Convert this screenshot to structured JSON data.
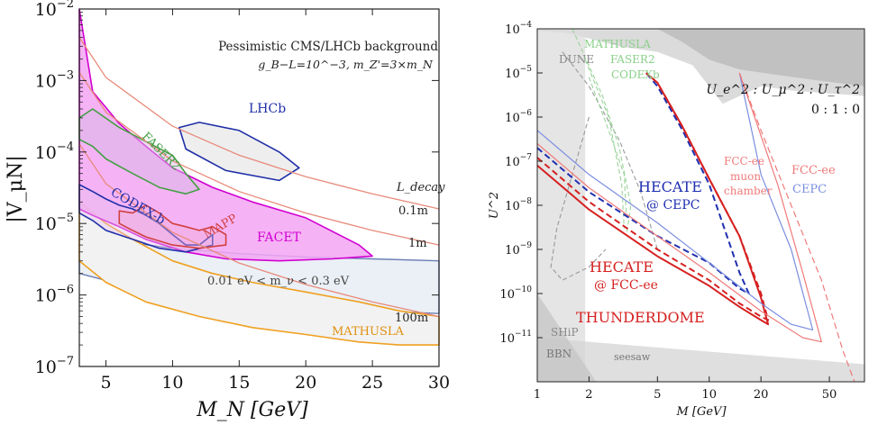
{
  "chart_data": [
    {
      "type": "area",
      "xlabel": "M_N [GeV]",
      "ylabel": "|V_μN|",
      "xlim": [
        3,
        30
      ],
      "ylim": [
        1e-07,
        0.01
      ],
      "xscale": "linear",
      "yscale": "log",
      "xticks": [
        "5",
        "10",
        "15",
        "20",
        "25",
        "30"
      ],
      "yticks": [
        "10^-7",
        "10^-6",
        "10^-5",
        "10^-4",
        "10^-3",
        "10^-2"
      ],
      "annotation_title": "Pessimistic CMS/LHCb background",
      "annotation_params": "g_B−L=10^−3, m_Z'=3×m_N",
      "ldecay_title": "L_decay",
      "series": [
        {
          "name": "LHCb",
          "color": "#1f2fa8",
          "x": [
            10.5,
            12,
            15,
            18,
            19.5,
            18,
            14,
            11,
            10.5
          ],
          "y": [
            0.00022,
            0.00026,
            0.0002,
            0.0001,
            6e-05,
            4e-05,
            5.5e-05,
            0.00011,
            0.00022
          ]
        },
        {
          "name": "FACET",
          "color": "#d200d2",
          "x": [
            3,
            4,
            6,
            8,
            10,
            13,
            16,
            20,
            24,
            25,
            22,
            18,
            14,
            11,
            8,
            6,
            4,
            3
          ],
          "y": [
            0.01,
            0.0007,
            0.00025,
            0.00012,
            6e-05,
            3.2e-05,
            2e-05,
            1.2e-05,
            5e-06,
            3.5e-06,
            3.2e-06,
            3e-06,
            3.2e-06,
            4e-06,
            6e-06,
            9e-06,
            1.3e-05,
            1.6e-05
          ]
        },
        {
          "name": "FASER2",
          "color": "#45a045",
          "x": [
            3,
            4,
            6,
            8,
            10,
            11,
            12,
            11,
            9,
            7,
            5,
            4,
            3
          ],
          "y": [
            0.0003,
            0.0004,
            0.00022,
            0.00014,
            9e-05,
            5e-05,
            3e-05,
            2.6e-05,
            3.2e-05,
            5e-05,
            8e-05,
            0.00012,
            0.00015
          ]
        },
        {
          "name": "CODEX-b",
          "color": "#1f2fa8",
          "x": [
            3,
            4,
            5,
            6,
            7,
            8,
            9,
            10,
            11,
            12,
            13,
            13,
            11,
            9,
            7,
            5,
            4,
            3
          ],
          "y": [
            3.5e-05,
            2.8e-05,
            2.2e-05,
            1.8e-05,
            1.6e-05,
            1.3e-05,
            1e-05,
            7e-06,
            5e-06,
            5e-06,
            7e-06,
            5e-06,
            4e-06,
            4.5e-06,
            6e-06,
            8e-06,
            1.1e-05,
            1.4e-05
          ]
        },
        {
          "name": "MAPP",
          "color": "#d24040",
          "x": [
            6,
            7,
            8,
            9,
            10,
            11,
            12,
            13,
            14,
            14,
            12,
            10,
            8,
            7,
            6
          ],
          "y": [
            1.5e-05,
            1.4e-05,
            1.8e-05,
            1.4e-05,
            1e-05,
            9e-06,
            8e-06,
            9e-06,
            7e-06,
            5e-06,
            4.5e-06,
            5e-06,
            6.5e-06,
            8e-06,
            1e-05
          ]
        },
        {
          "name": "MATHUSLA",
          "color": "#f0a020",
          "x": [
            3,
            5,
            7,
            10,
            13,
            16,
            20,
            24,
            27,
            30,
            30,
            27,
            24,
            20,
            16,
            12,
            8,
            5,
            3
          ],
          "y": [
            2e-05,
            1e-05,
            6e-06,
            3e-06,
            2e-06,
            1.5e-06,
            1.1e-06,
            8e-07,
            6e-07,
            5e-07,
            2e-07,
            2e-07,
            2.2e-07,
            2.8e-07,
            3.5e-07,
            5e-07,
            8e-07,
            1.5e-06,
            3e-06
          ]
        },
        {
          "name": "seesaw band 0.01eV<m_ν<0.3eV",
          "color": "#6a7fb5",
          "x": [
            3,
            5,
            10,
            15,
            20,
            25,
            30,
            30,
            25,
            20,
            15,
            10,
            5,
            3
          ],
          "y": [
            1e-05,
            6e-06,
            4.5e-06,
            3.8e-06,
            3.4e-06,
            3.2e-06,
            3e-06,
            5.5e-07,
            6e-07,
            7e-07,
            8.5e-07,
            1.1e-06,
            1.6e-06,
            2e-06
          ]
        }
      ],
      "decay_lengths": [
        {
          "label": "0.1m",
          "x": [
            3,
            5,
            10,
            15,
            20,
            25,
            30
          ],
          "y": [
            0.004,
            0.0011,
            0.00023,
            9e-05,
            4.5e-05,
            2.6e-05,
            1.6e-05
          ]
        },
        {
          "label": "1m",
          "x": [
            3,
            5,
            10,
            15,
            20,
            25,
            30
          ],
          "y": [
            0.0013,
            0.00036,
            7.5e-05,
            2.8e-05,
            1.4e-05,
            8e-06,
            5e-06
          ]
        },
        {
          "label": "100m",
          "x": [
            3,
            5,
            10,
            15,
            20,
            25,
            30
          ],
          "y": [
            0.00013,
            3.6e-05,
            7.5e-06,
            2.8e-06,
            1.4e-06,
            8e-07,
            5e-07
          ]
        }
      ],
      "labels": {
        "seesaw": "0.01 eV < m_ν < 0.3 eV",
        "lhcb": "LHCb",
        "facet": "FACET",
        "faser2": "FASER2",
        "codexb": "CODEX-b",
        "mapp": "MAPP",
        "mathusla": "MATHUSLA"
      }
    },
    {
      "type": "line",
      "xlabel": "M [GeV]",
      "ylabel": "U^2",
      "xlim": [
        1,
        80
      ],
      "ylim": [
        1e-12,
        0.0001
      ],
      "xscale": "log",
      "yscale": "log",
      "xticks": [
        "1",
        "2",
        "5",
        "10",
        "20",
        "50"
      ],
      "yticks": [
        "10^-11",
        "10^-10",
        "10^-9",
        "10^-8",
        "10^-7",
        "10^-6",
        "10^-5",
        "10^-4"
      ],
      "ratio": "U_e^2 : U_μ^2 : U_τ^2",
      "ratio_values": "0 : 1 : 0",
      "series": [
        {
          "name": "HECATE @ CEPC",
          "color": "#1f2fb0",
          "style": "dashed",
          "x": [
            1,
            2,
            5,
            10,
            15,
            17,
            15,
            10,
            7,
            5,
            4.3
          ],
          "y": [
            2e-07,
            2e-08,
            2e-09,
            5e-10,
            1.3e-10,
            1e-10,
            3e-10,
            3e-08,
            5e-07,
            5e-06,
            1e-05
          ]
        },
        {
          "name": "HECATE @ FCC-ee",
          "color": "#d62020",
          "style": "dashed",
          "x": [
            1,
            2,
            5,
            10,
            15,
            20,
            22,
            20,
            15,
            10,
            7,
            5,
            4.3
          ],
          "y": [
            1.2e-07,
            1.2e-08,
            1e-09,
            2e-10,
            6e-11,
            3e-11,
            2.5e-11,
            1e-10,
            2e-09,
            4e-08,
            6e-07,
            6e-06,
            1e-05
          ]
        },
        {
          "name": "THUNDERDOME",
          "color": "#d62020",
          "style": "solid",
          "x": [
            1,
            2,
            5,
            10,
            15,
            20,
            22,
            20,
            15,
            10,
            7,
            5,
            4.3
          ],
          "y": [
            8e-08,
            8e-09,
            7e-10,
            1.5e-10,
            5e-11,
            2.5e-11,
            2e-11,
            8e-11,
            2e-09,
            4e-08,
            6e-07,
            6e-06,
            1e-05
          ]
        },
        {
          "name": "CEPC",
          "color": "#7b8ee0",
          "style": "solid",
          "x": [
            1,
            2,
            5,
            10,
            20,
            30,
            40,
            30,
            20,
            15
          ],
          "y": [
            5e-07,
            5e-08,
            4e-09,
            5e-10,
            6e-11,
            2e-11,
            1.5e-11,
            1e-09,
            5e-08,
            1e-05
          ]
        },
        {
          "name": "FCC-ee",
          "color": "#f07a7a",
          "style": "solid",
          "x": [
            1,
            2,
            5,
            10,
            20,
            35,
            45,
            35,
            25,
            15
          ],
          "y": [
            2.5e-07,
            2.5e-08,
            2e-09,
            3e-10,
            4e-11,
            1e-11,
            8e-12,
            3e-10,
            3e-08,
            1e-05
          ]
        },
        {
          "name": "FCC-ee muon chamber",
          "color": "#f07a7a",
          "style": "dashed",
          "x": [
            15,
            20,
            30,
            45,
            60,
            70
          ],
          "y": [
            1e-05,
            5e-07,
            1e-08,
            2e-10,
            5e-12,
            1e-12
          ]
        }
      ],
      "labels": {
        "hecate_cepc_1": "HECATE",
        "hecate_cepc_2": "@ CEPC",
        "hecate_fcc_1": "HECATE",
        "hecate_fcc_2": "@ FCC-ee",
        "thunderdome": "THUNDERDOME",
        "cepc": "CEPC",
        "fccee": "FCC-ee",
        "muon_1": "FCC-ee",
        "muon_2": "muon",
        "muon_3": "chamber",
        "mathusla": "MATHUSLA",
        "faser2": "FASER2",
        "codexb": "CODEXb",
        "dune": "DUNE",
        "ship": "SHiP",
        "bbn": "BBN",
        "seesaw": "seesaw"
      }
    }
  ]
}
